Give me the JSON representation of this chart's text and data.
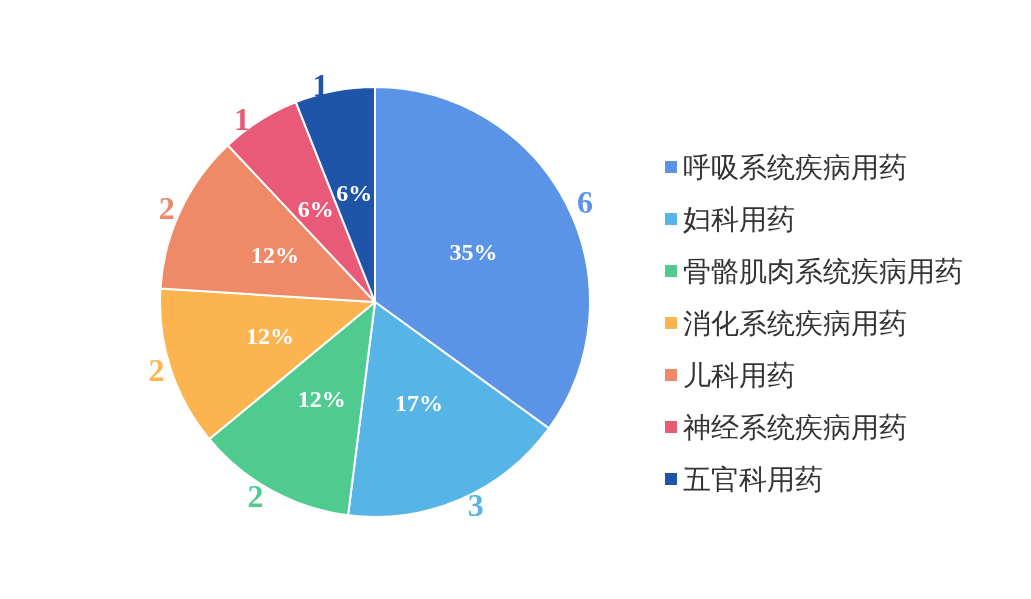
{
  "chart_data": {
    "type": "pie",
    "categories": [
      "呼吸系统疾病用药",
      "妇科用药",
      "骨骼肌肉系统疾病用药",
      "消化系统疾病用药",
      "儿科用药",
      "神经系统疾病用药",
      "五官科用药"
    ],
    "values": [
      35,
      17,
      12,
      12,
      12,
      6,
      6
    ],
    "value_labels": [
      "35%",
      "17%",
      "12%",
      "12%",
      "12%",
      "6%",
      "6%"
    ],
    "colors": [
      "#5b93e6",
      "#56b4e6",
      "#4fcb8f",
      "#fbb44f",
      "#ee8a68",
      "#e85a78",
      "#1f55a8"
    ],
    "annotations": [
      {
        "text": "6",
        "x": "呼吸系统疾病用药"
      },
      {
        "text": "3",
        "x": "妇科用药"
      },
      {
        "text": "2",
        "x": "骨骼肌肉系统疾病用药"
      },
      {
        "text": "2",
        "x": "消化系统疾病用药"
      },
      {
        "text": "2",
        "x": "儿科用药"
      },
      {
        "text": "1",
        "x": "神经系统疾病用药"
      },
      {
        "text": "1",
        "x": "五官科用药"
      }
    ],
    "legend": "right"
  }
}
